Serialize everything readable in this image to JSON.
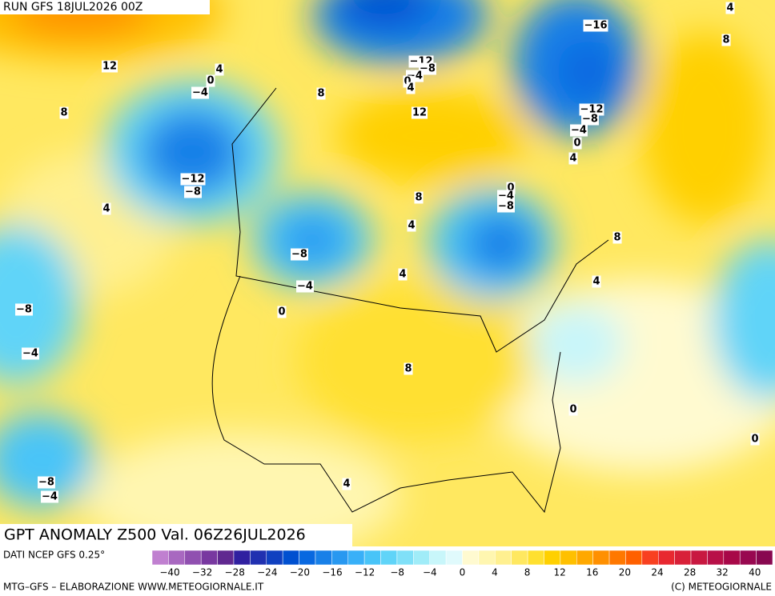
{
  "header": {
    "run": "RUN GFS 18JUL2026 00Z",
    "title": "GPT ANOMALY Z500 Val. 06Z26JUL2026"
  },
  "contour_labels": [
    "12",
    "4",
    "0",
    "−4",
    "8",
    "−12",
    "−8",
    "4",
    "−8",
    "−4",
    "0",
    "−8",
    "−4",
    "−8",
    "−4",
    "4",
    "8",
    "4",
    "4",
    "8",
    "12",
    "8",
    "−12",
    "−8",
    "−4",
    "0",
    "4",
    "−16",
    "4",
    "8",
    "−12",
    "−8",
    "−4",
    "0",
    "4",
    "0",
    "−4",
    "−8",
    "8",
    "4",
    "0",
    "0"
  ],
  "colorbar": {
    "colors": [
      "#c080d0",
      "#a868c0",
      "#9050b0",
      "#7838a0",
      "#602890",
      "#3020a0",
      "#2030b0",
      "#1040c0",
      "#0050d0",
      "#0868e0",
      "#1880e8",
      "#2898f0",
      "#38b0f8",
      "#48c4f8",
      "#60d4f8",
      "#80e0f8",
      "#a0ecf8",
      "#c8f6fa",
      "#e0fafc",
      "#fffad0",
      "#fff6b0",
      "#fff090",
      "#ffe860",
      "#ffe030",
      "#ffd000",
      "#ffc000",
      "#ffa800",
      "#ff9000",
      "#ff7800",
      "#ff6000",
      "#f84020",
      "#e82830",
      "#d82038",
      "#c81840",
      "#b81048",
      "#a80848",
      "#980850",
      "#880850"
    ],
    "labels": [
      "−40",
      "−32",
      "−28",
      "−24",
      "−20",
      "−16",
      "−12",
      "−8",
      "−4",
      "0",
      "4",
      "8",
      "12",
      "16",
      "20",
      "24",
      "28",
      "32",
      "40"
    ]
  },
  "footer": {
    "source": "DATI NCEP GFS 0.25°",
    "credit": "MTG–GFS – ELABORAZIONE WWW.METEOGIORNALE.IT",
    "copyright": "(C) METEOGIORNALE"
  }
}
